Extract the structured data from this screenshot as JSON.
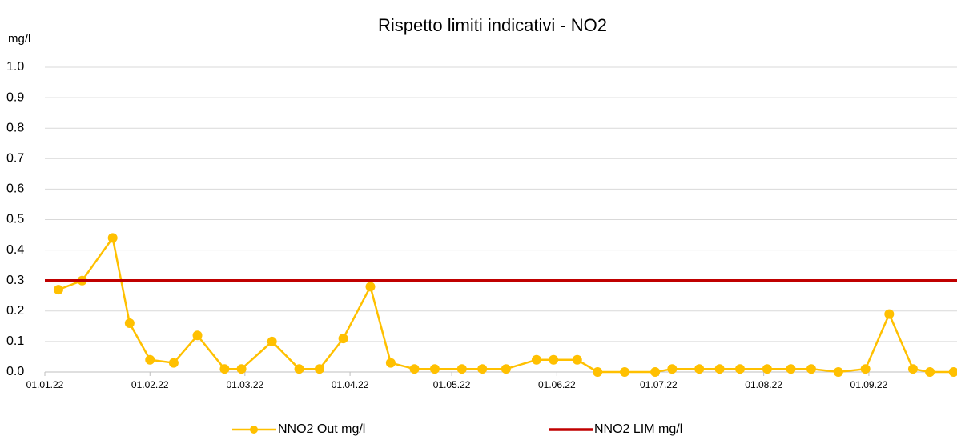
{
  "chart_data": {
    "type": "line",
    "title": "Rispetto limiti indicativi - NO2",
    "y_label": "mg/l",
    "x": [
      "05.01.22",
      "12.01.22",
      "21.01.22",
      "26.01.22",
      "01.02.22",
      "08.02.22",
      "15.02.22",
      "23.02.22",
      "28.02.22",
      "09.03.22",
      "17.03.22",
      "23.03.22",
      "30.03.22",
      "07.04.22",
      "13.04.22",
      "20.04.22",
      "26.04.22",
      "04.05.22",
      "10.05.22",
      "17.05.22",
      "26.05.22",
      "31.05.22",
      "07.06.22",
      "13.06.22",
      "21.06.22",
      "30.06.22",
      "05.07.22",
      "13.07.22",
      "19.07.22",
      "25.07.22",
      "02.08.22",
      "09.08.22",
      "15.08.22",
      "23.08.22",
      "31.08.22",
      "07.09.22",
      "14.09.22",
      "19.09.22",
      "26.09.22"
    ],
    "series": [
      {
        "name": "NNO2 Out mg/l",
        "color": "#ffc000",
        "marker": true,
        "values": [
          0.27,
          0.3,
          0.44,
          0.16,
          0.04,
          0.03,
          0.12,
          0.01,
          0.01,
          0.1,
          0.01,
          0.01,
          0.11,
          0.28,
          0.03,
          0.01,
          0.01,
          0.01,
          0.01,
          0.01,
          0.04,
          0.04,
          0.04,
          0,
          0,
          0,
          0.01,
          0.01,
          0.01,
          0.01,
          0.01,
          0.01,
          0.01,
          0,
          0.01,
          0.19,
          0.01,
          0,
          0
        ]
      },
      {
        "name": "NNO2 LIM mg/l",
        "color": "#c00000",
        "marker": false,
        "x": [
          "01.01.22",
          "27.09.22"
        ],
        "values": [
          0.3,
          0.3
        ]
      }
    ],
    "xlim": [
      "01.01.22",
      "27.09.22"
    ],
    "xticks": [
      "01.01.22",
      "01.02.22",
      "01.03.22",
      "01.04.22",
      "01.05.22",
      "01.06.22",
      "01.07.22",
      "01.08.22",
      "01.09.22"
    ],
    "ylim": [
      0,
      1
    ],
    "yticks": [
      {
        "value": 0,
        "label": "0.0"
      },
      0.1,
      0.2,
      0.3,
      0.4,
      0.5,
      0.6,
      0.7,
      0.8,
      0.9,
      {
        "value": 1,
        "label": "1.0"
      }
    ],
    "grid": true,
    "legend": "bottom"
  }
}
